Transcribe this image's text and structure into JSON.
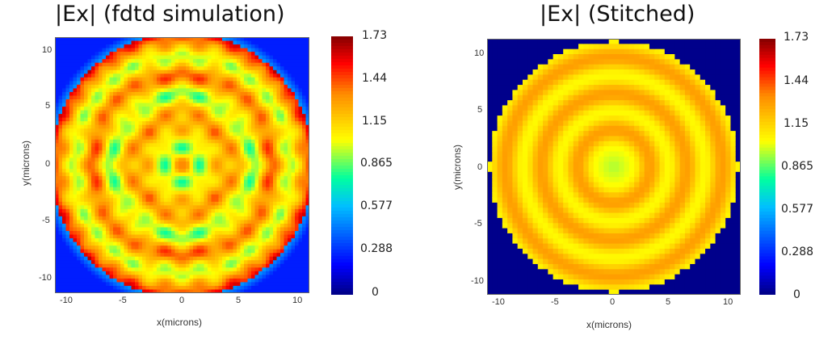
{
  "chart_data": [
    {
      "type": "heatmap",
      "title": "|Ex| (fdtd simulation)",
      "xlabel": "x(microns)",
      "ylabel": "y(microns)",
      "x_ticks": [
        "-10",
        "-5",
        "0",
        "5",
        "10"
      ],
      "y_ticks": [
        "10",
        "5",
        "0",
        "-5",
        "-10"
      ],
      "xlim": [
        -11,
        11
      ],
      "ylim": [
        -11,
        11
      ],
      "colorbar": {
        "ticks": [
          "1.73",
          "1.44",
          "1.15",
          "0.865",
          "0.577",
          "0.288",
          "0"
        ],
        "range": [
          0,
          1.73
        ]
      },
      "colormap": [
        "#00008b",
        "#0000ff",
        "#00bfff",
        "#00ffa0",
        "#ffff00",
        "#ff8c00",
        "#ff0000",
        "#8b0000"
      ],
      "description_values": {
        "disk_radius_microns": 10.8,
        "background_level": 0.25,
        "interior_level": 1.3,
        "peak_level": 1.73
      }
    },
    {
      "type": "heatmap",
      "title": "|Ex| (Stitched)",
      "xlabel": "x(microns)",
      "ylabel": "y(microns)",
      "x_ticks": [
        "-10",
        "-5",
        "0",
        "5",
        "10"
      ],
      "y_ticks": [
        "10",
        "5",
        "0",
        "-5",
        "-10"
      ],
      "xlim": [
        -11,
        11
      ],
      "ylim": [
        -11,
        11
      ],
      "colorbar": {
        "ticks": [
          "1.73",
          "1.44",
          "1.15",
          "0.865",
          "0.577",
          "0.288",
          "0"
        ],
        "range": [
          0,
          1.73
        ]
      },
      "colormap": [
        "#00008b",
        "#0000ff",
        "#00bfff",
        "#00ffa0",
        "#ffff00",
        "#ff8c00",
        "#ff0000",
        "#8b0000"
      ],
      "description_values": {
        "disk_radius_microns": 10.8,
        "background_level": 0.0,
        "ring_levels": [
          1.05,
          1.3
        ],
        "center_level": 0.95
      }
    }
  ]
}
